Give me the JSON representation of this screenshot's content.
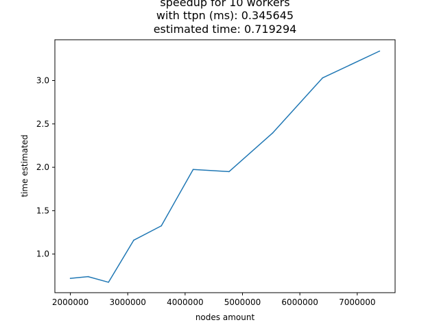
{
  "chart_data": {
    "type": "line",
    "title_lines": [
      "speedup for 10 workers",
      "with ttpn (ms): 0.345645",
      "estimated time: 0.719294"
    ],
    "xlabel": "nodes amount",
    "ylabel": "time estimated",
    "xlim": [
      1730000,
      7660000
    ],
    "ylim": [
      0.555,
      3.47
    ],
    "x_ticks": [
      2000000,
      3000000,
      4000000,
      5000000,
      6000000,
      7000000
    ],
    "x_tick_labels": [
      "2000000",
      "3000000",
      "4000000",
      "5000000",
      "6000000",
      "7000000"
    ],
    "y_ticks": [
      1.0,
      1.5,
      2.0,
      2.5,
      3.0
    ],
    "y_tick_labels": [
      "1.0",
      "1.5",
      "2.0",
      "2.5",
      "3.0"
    ],
    "grid": false,
    "series": [
      {
        "color": "#1f77b4",
        "x": [
          2000000,
          2310000,
          2665000,
          3105000,
          3585000,
          4140000,
          4765000,
          5525000,
          6395000,
          7390000
        ],
        "y": [
          0.72,
          0.74,
          0.675,
          1.16,
          1.325,
          1.975,
          1.95,
          2.395,
          3.03,
          3.34
        ]
      }
    ]
  }
}
